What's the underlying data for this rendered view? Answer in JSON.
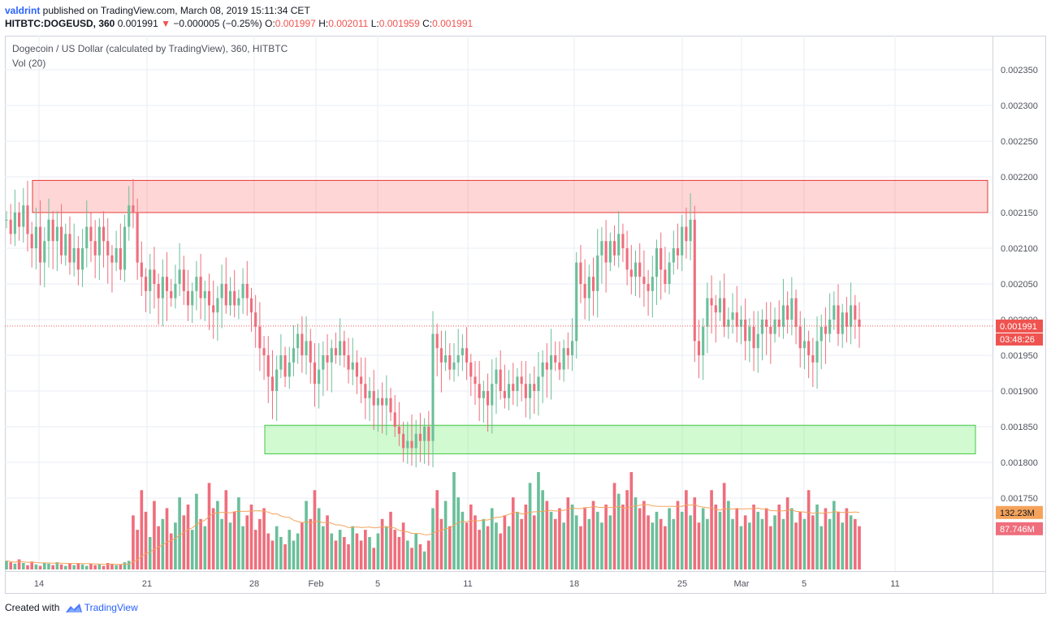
{
  "header": {
    "author": "valdrint",
    "published_text": " published on TradingView.com, March 08, 2019 15:11:34 CET",
    "symbol": "HITBTC:DOGEUSD, 360",
    "last": "0.001991",
    "change": "−0.000005 (−0.25%)",
    "o_label": "O:",
    "o_value": "0.001997",
    "h_label": "H:",
    "h_value": "0.002011",
    "l_label": "L:",
    "l_value": "0.001959",
    "c_label": "C:",
    "c_value": "0.001991"
  },
  "legend": {
    "title": "Dogecoin / US Dollar (calculated by TradingView), 360, HITBTC",
    "volume": "Vol (20)"
  },
  "footer": {
    "created_with": "Created with",
    "brand": "TradingView"
  },
  "colors": {
    "up": "#6bbf9a",
    "down": "#ef6e7c",
    "grid": "#e8eef6",
    "axis": "#888888",
    "resistance_fill": "rgba(255,0,0,0.16)",
    "resistance_stroke": "#e53935",
    "support_fill": "rgba(0,230,0,0.18)",
    "support_stroke": "#43c843",
    "ma": "#f5a35b",
    "last_price_line": "#ef5350",
    "price_label_bg": "#ef5350",
    "ma_label_bg": "#f5a35b"
  },
  "chart_data": {
    "type": "candlestick",
    "symbol": "DOGEUSD",
    "timeframe_minutes": 360,
    "x_ticks": [
      "14",
      "21",
      "28",
      "Feb",
      "5",
      "11",
      "18",
      "25",
      "Mar",
      "5",
      "11"
    ],
    "y_ticks": [
      "0.002350",
      "0.002300",
      "0.002250",
      "0.002200",
      "0.002150",
      "0.002100",
      "0.002050",
      "0.002000",
      "0.001950",
      "0.001900",
      "0.001850",
      "0.001800",
      "0.001750"
    ],
    "y_range": [
      0.00174,
      0.0024
    ],
    "resistance_zone": [
      0.00215,
      0.002195
    ],
    "support_zone": [
      0.001812,
      0.001852
    ],
    "last_price": "0.001991",
    "time_to_close": "03:48:26",
    "volume_ma_label": "132.23M",
    "last_volume_label": "87.746M",
    "price_path": [
      0.00214,
      0.00212,
      0.00215,
      0.00213,
      0.00216,
      0.00212,
      0.0021,
      0.00213,
      0.00208,
      0.00211,
      0.00214,
      0.00211,
      0.00213,
      0.00209,
      0.00212,
      0.00208,
      0.0021,
      0.00207,
      0.0021,
      0.00213,
      0.00211,
      0.00209,
      0.00213,
      0.00211,
      0.00209,
      0.00208,
      0.0021,
      0.00207,
      0.00213,
      0.00216,
      0.00215,
      0.00208,
      0.00206,
      0.00204,
      0.00207,
      0.00205,
      0.00203,
      0.00206,
      0.00204,
      0.00203,
      0.00205,
      0.00207,
      0.00204,
      0.00202,
      0.00204,
      0.00206,
      0.00203,
      0.00204,
      0.00202,
      0.00201,
      0.00203,
      0.00205,
      0.00202,
      0.00204,
      0.00202,
      0.00203,
      0.00205,
      0.00203,
      0.00201,
      0.00199,
      0.00196,
      0.00195,
      0.00192,
      0.0019,
      0.00193,
      0.00195,
      0.00192,
      0.00194,
      0.00196,
      0.00198,
      0.00195,
      0.00197,
      0.00194,
      0.00191,
      0.00193,
      0.00195,
      0.00194,
      0.00196,
      0.00195,
      0.00197,
      0.00195,
      0.00193,
      0.00194,
      0.00192,
      0.00191,
      0.00189,
      0.0019,
      0.00188,
      0.00189,
      0.00188,
      0.00189,
      0.00187,
      0.00185,
      0.00184,
      0.00182,
      0.00183,
      0.00182,
      0.00184,
      0.00183,
      0.00185,
      0.00183,
      0.00198,
      0.00196,
      0.00194,
      0.00195,
      0.00193,
      0.00194,
      0.00195,
      0.00196,
      0.00194,
      0.00192,
      0.00191,
      0.00189,
      0.0019,
      0.00188,
      0.00191,
      0.00193,
      0.0019,
      0.00189,
      0.00191,
      0.0019,
      0.00192,
      0.00191,
      0.00189,
      0.00191,
      0.0019,
      0.00192,
      0.00194,
      0.00193,
      0.00195,
      0.00194,
      0.00193,
      0.00196,
      0.00195,
      0.00197,
      0.00208,
      0.00205,
      0.00203,
      0.00206,
      0.00204,
      0.00209,
      0.00211,
      0.00208,
      0.00211,
      0.00209,
      0.00212,
      0.0021,
      0.00207,
      0.00206,
      0.00208,
      0.00206,
      0.00205,
      0.00204,
      0.00206,
      0.0021,
      0.00207,
      0.00205,
      0.00208,
      0.0021,
      0.00209,
      0.00213,
      0.00211,
      0.00214,
      0.00197,
      0.00195,
      0.00199,
      0.00203,
      0.00202,
      0.00201,
      0.00203,
      0.00199,
      0.002,
      0.00201,
      0.00199,
      0.002,
      0.00197,
      0.00199,
      0.00196,
      0.00198,
      0.002,
      0.00199,
      0.00198,
      0.002,
      0.00199,
      0.00202,
      0.002,
      0.00203,
      0.00199,
      0.00196,
      0.00197,
      0.00195,
      0.00194,
      0.00197,
      0.00199,
      0.00198,
      0.002,
      0.00202,
      0.00198,
      0.00201,
      0.00199,
      0.00202,
      0.002,
      0.00199
    ],
    "volume_pattern": [
      12,
      10,
      8,
      14,
      9,
      6,
      11,
      7,
      5,
      9,
      8,
      6,
      10,
      7,
      5,
      8,
      6,
      9,
      7,
      5,
      8,
      6,
      7,
      5,
      9,
      8,
      6,
      7,
      10,
      12,
      75,
      55,
      110,
      80,
      45,
      95,
      60,
      70,
      85,
      50,
      65,
      100,
      75,
      90,
      55,
      105,
      70,
      60,
      120,
      85,
      95,
      70,
      110,
      65,
      80,
      100,
      60,
      75,
      90,
      55,
      70,
      85,
      50,
      40,
      60,
      45,
      35,
      55,
      40,
      50,
      65,
      95,
      70,
      110,
      85,
      60,
      75,
      50,
      40,
      55,
      45,
      35,
      60,
      50,
      40,
      55,
      45,
      30,
      50,
      70,
      60,
      80,
      55,
      45,
      65,
      40,
      30,
      50,
      35,
      25,
      40,
      85,
      110,
      70,
      95,
      60,
      135,
      100,
      80,
      65,
      90,
      75,
      55,
      70,
      60,
      85,
      65,
      50,
      75,
      60,
      100,
      80,
      70,
      90,
      120,
      75,
      135,
      110,
      95,
      80,
      70,
      85,
      65,
      100,
      90,
      75,
      60,
      85,
      70,
      95,
      80,
      65,
      90,
      75,
      120,
      105,
      90,
      110,
      135,
      100,
      85,
      95,
      75,
      65,
      80,
      70,
      60,
      85,
      70,
      95,
      80,
      110,
      75,
      100,
      65,
      85,
      70,
      110,
      90,
      80,
      120,
      95,
      70,
      85,
      60,
      75,
      65,
      90,
      80,
      70,
      85,
      60,
      75,
      90,
      70,
      100,
      85,
      65,
      80,
      70,
      110,
      75,
      90,
      60,
      85,
      70,
      95,
      80,
      65,
      85,
      75,
      70,
      60,
      50
    ]
  }
}
